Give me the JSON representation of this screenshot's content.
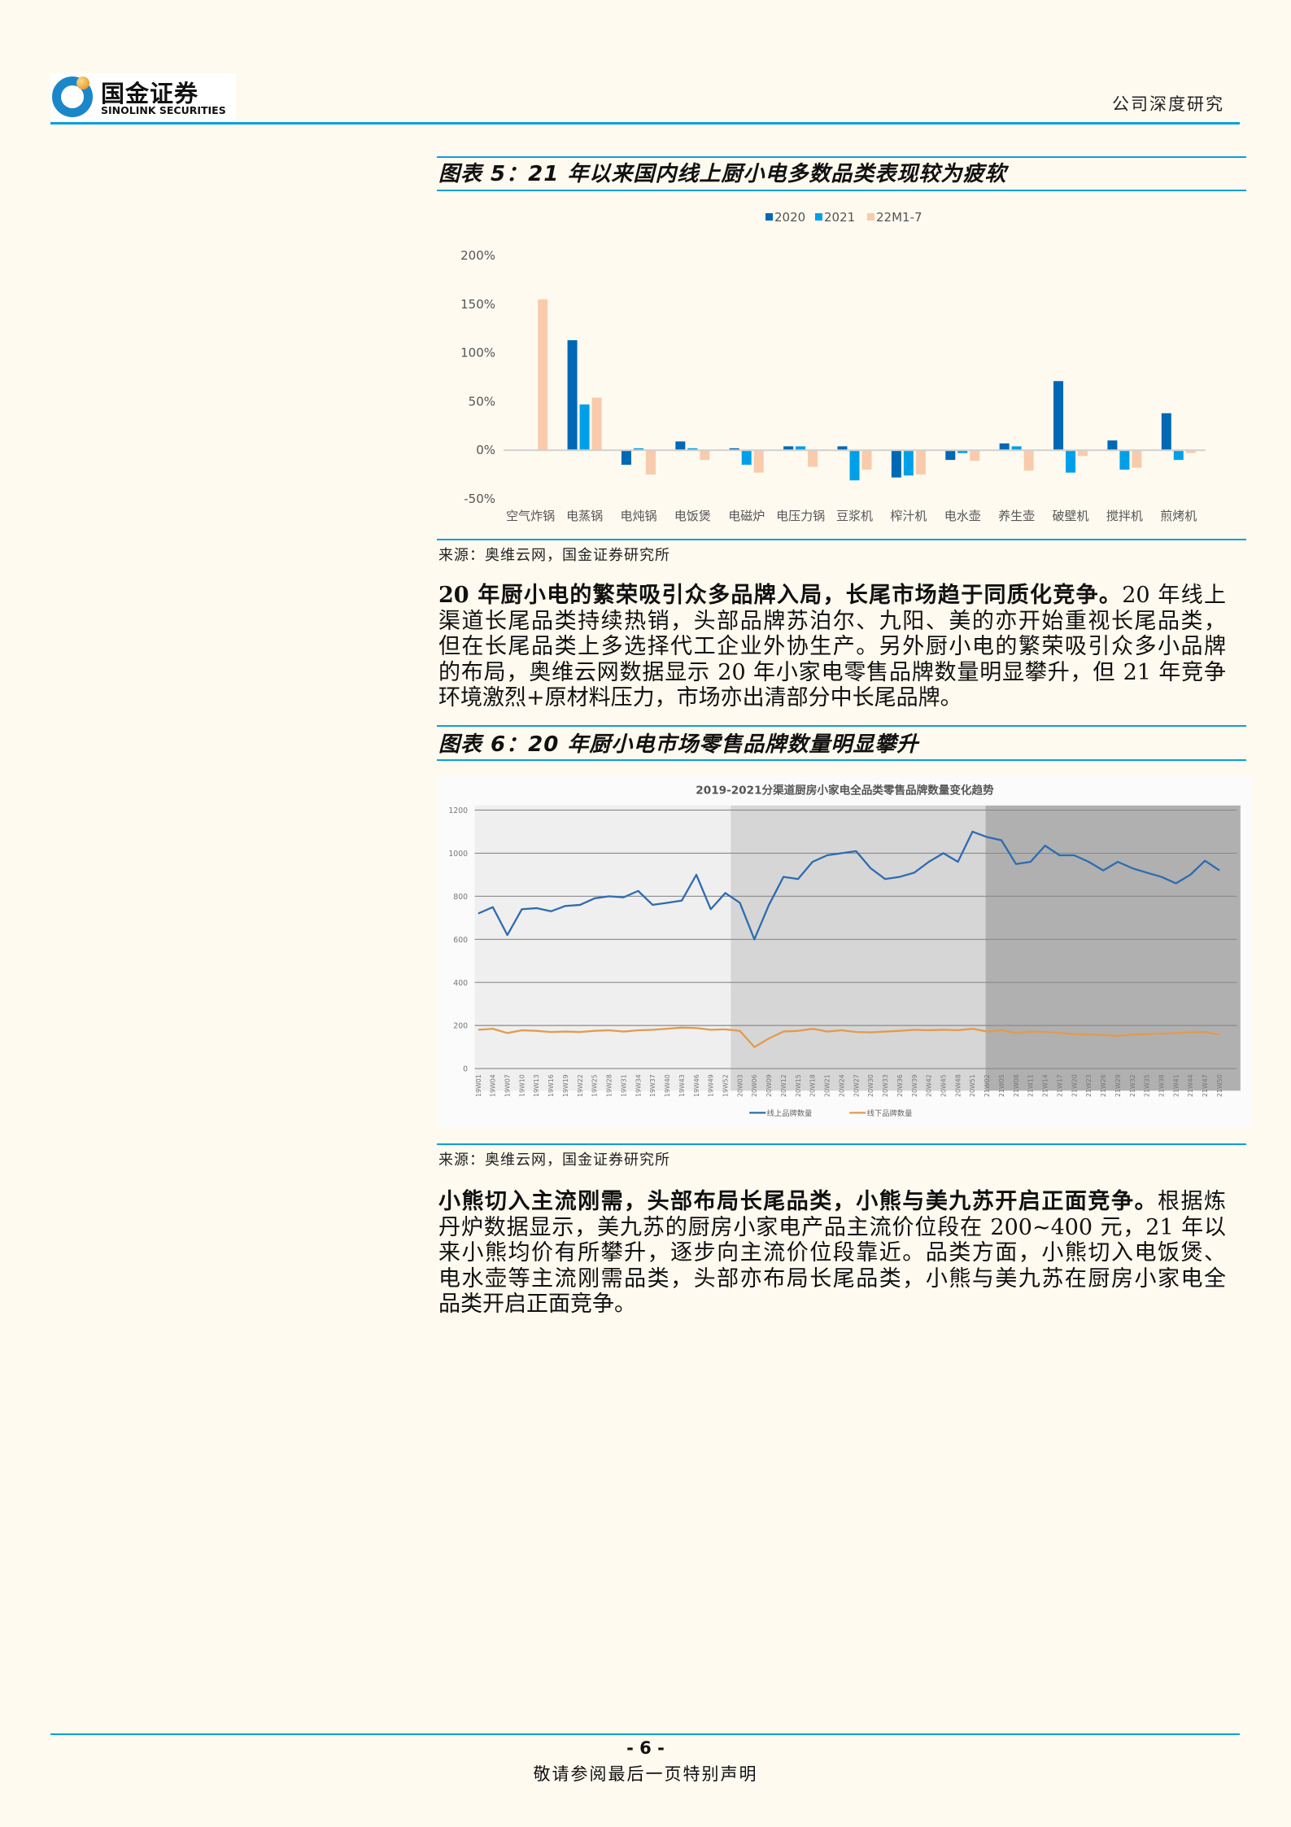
{
  "header": {
    "logo_cn": "国金证券",
    "logo_en": "SINOLINK SECURITIES",
    "report_type": "公司深度研究"
  },
  "figure5": {
    "title": "图表 5：21 年以来国内线上厨小电多数品类表现较为疲软",
    "source": "来源：奥维云网，国金证券研究所"
  },
  "chart_data": [
    {
      "type": "bar",
      "categories": [
        "空气炸锅",
        "电蒸锅",
        "电炖锅",
        "电饭煲",
        "电磁炉",
        "电压力锅",
        "豆浆机",
        "榨汁机",
        "电水壶",
        "养生壶",
        "破壁机",
        "搅拌机",
        "煎烤机"
      ],
      "series": [
        {
          "name": "2020",
          "color": "#0068b5",
          "values": [
            null,
            113,
            -15,
            9,
            2,
            4,
            4,
            -28,
            -10,
            7,
            71,
            10,
            38
          ]
        },
        {
          "name": "2021",
          "color": "#00a0e9",
          "values": [
            null,
            47,
            2,
            2,
            -15,
            4,
            -31,
            -26,
            -3,
            4,
            -23,
            -20,
            -10
          ]
        },
        {
          "name": "22M1-7",
          "color": "#f8cbad",
          "values": [
            155,
            54,
            -25,
            -10,
            -23,
            -17,
            -20,
            -25,
            -11,
            -21,
            -6,
            -18,
            -3
          ]
        }
      ],
      "yticks": [
        "200%",
        "150%",
        "100%",
        "50%",
        "0%",
        "-50%"
      ],
      "ylim": [
        -50,
        200
      ],
      "legend": "top-center",
      "grid": false
    },
    {
      "type": "line",
      "title": "2019-2021分渠道厨房小家电全品类零售品牌数量变化趋势",
      "x": [
        "19W01",
        "19W04",
        "19W07",
        "19W10",
        "19W13",
        "19W16",
        "19W19",
        "19W22",
        "19W25",
        "19W28",
        "19W31",
        "19W34",
        "19W37",
        "19W40",
        "19W43",
        "19W46",
        "19W49",
        "19W52",
        "20W03",
        "20W06",
        "20W09",
        "20W12",
        "20W15",
        "20W18",
        "20W21",
        "20W24",
        "20W27",
        "20W30",
        "20W33",
        "20W36",
        "20W39",
        "20W42",
        "20W45",
        "20W48",
        "20W51",
        "21W02",
        "21W05",
        "21W08",
        "21W11",
        "21W14",
        "21W17",
        "21W20",
        "21W23",
        "21W26",
        "21W29",
        "21W32",
        "21W35",
        "21W38",
        "21W41",
        "21W44",
        "21W47",
        "21W50"
      ],
      "series": [
        {
          "name": "线上品牌数量",
          "color": "#2e6bb0",
          "values": [
            720,
            750,
            620,
            740,
            745,
            730,
            755,
            760,
            790,
            800,
            795,
            825,
            760,
            770,
            780,
            900,
            740,
            815,
            770,
            600,
            760,
            890,
            880,
            960,
            990,
            1000,
            1010,
            930,
            880,
            890,
            910,
            960,
            1000,
            960,
            1100,
            1075,
            1060,
            950,
            960,
            1035,
            990,
            990,
            960,
            920,
            960,
            930,
            910,
            890,
            860,
            900,
            965,
            920
          ]
        },
        {
          "name": "线下品牌数量",
          "color": "#e39a4e",
          "values": [
            180,
            185,
            165,
            178,
            175,
            170,
            172,
            170,
            175,
            178,
            172,
            178,
            180,
            185,
            190,
            188,
            180,
            182,
            175,
            100,
            140,
            172,
            175,
            185,
            172,
            178,
            170,
            168,
            172,
            175,
            180,
            178,
            180,
            178,
            185,
            172,
            178,
            165,
            172,
            170,
            165,
            160,
            158,
            155,
            152,
            158,
            160,
            162,
            165,
            168,
            170,
            158
          ]
        }
      ],
      "yticks": [
        "1200",
        "1000",
        "800",
        "600",
        "400",
        "200",
        "0"
      ],
      "ylim": [
        0,
        1200
      ],
      "legend": "bottom-center",
      "grid": true
    }
  ],
  "paragraph1": {
    "lines": [
      {
        "bold": "20 年厨小电的繁荣吸引众多品牌入局，长尾市场趋于同质化竞争。",
        "text": "20 年线上"
      },
      {
        "bold": "",
        "text": "渠道长尾品类持续热销，头部品牌苏泊尔、九阳、美的亦开始重视长尾品类，"
      },
      {
        "bold": "",
        "text": "但在长尾品类上多选择代工企业外协生产。另外厨小电的繁荣吸引众多小品牌"
      },
      {
        "bold": "",
        "text": "的布局，奥维云网数据显示 20 年小家电零售品牌数量明显攀升，但 21 年竞争"
      },
      {
        "bold": "",
        "text": "环境激烈+原材料压力，市场亦出清部分中长尾品牌。"
      }
    ]
  },
  "figure6": {
    "title": "图表 6：20 年厨小电市场零售品牌数量明显攀升",
    "source": "来源：奥维云网，国金证券研究所"
  },
  "paragraph2": {
    "lines": [
      {
        "bold": "小熊切入主流刚需，头部布局长尾品类，小熊与美九苏开启正面竞争。",
        "text": "根据炼"
      },
      {
        "bold": "",
        "text": "丹炉数据显示，美九苏的厨房小家电产品主流价位段在 200~400 元，21 年以"
      },
      {
        "bold": "",
        "text": "来小熊均价有所攀升，逐步向主流价位段靠近。品类方面，小熊切入电饭煲、"
      },
      {
        "bold": "",
        "text": "电水壶等主流刚需品类，头部亦布局长尾品类，小熊与美九苏在厨房小家电全"
      },
      {
        "bold": "",
        "text": "品类开启正面竞争。"
      }
    ]
  },
  "footer": {
    "page": "- 6 -",
    "note": "敬请参阅最后一页特别声明"
  }
}
